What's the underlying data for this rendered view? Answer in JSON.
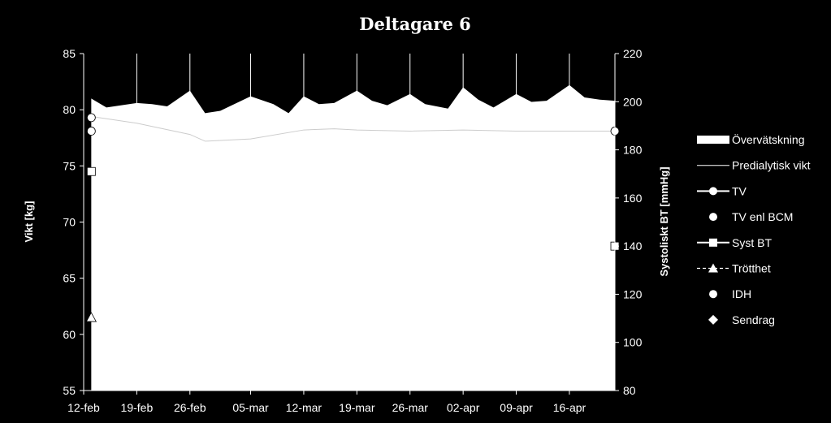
{
  "chart_data": {
    "type": "area",
    "title": "Deltagare 6",
    "x_ticks": [
      "12-feb",
      "19-feb",
      "26-feb",
      "05-mar",
      "12-mar",
      "19-mar",
      "26-mar",
      "02-apr",
      "09-apr",
      "16-apr"
    ],
    "x_range": [
      "12-feb",
      "22-apr"
    ],
    "y_left": {
      "label": "Vikt [kg]",
      "range": [
        55,
        85
      ],
      "ticks": [
        55,
        60,
        65,
        70,
        75,
        80,
        85
      ]
    },
    "y_right": {
      "label": "Systoliskt BT [mmHg]",
      "range": [
        80,
        220
      ],
      "ticks": [
        80,
        100,
        120,
        140,
        160,
        180,
        200,
        220
      ]
    },
    "legend_position": "right",
    "legend": [
      "Övervätskning",
      "Predialytisk vikt",
      "TV",
      "TV enl BCM",
      "Syst BT",
      "Trötthet",
      "IDH",
      "Sendrag"
    ],
    "colors": {
      "background": "#000000",
      "foreground": "#ffffff"
    },
    "series": [
      {
        "name": "Övervätskning",
        "axis": "left",
        "x": [
          "13-feb",
          "15-feb",
          "19-feb",
          "21-feb",
          "23-feb",
          "26-feb",
          "28-feb",
          "01-mar",
          "05-mar",
          "08-mar",
          "10-mar",
          "12-mar",
          "14-mar",
          "16-mar",
          "19-mar",
          "21-mar",
          "23-mar",
          "26-mar",
          "28-mar",
          "31-mar",
          "02-apr",
          "04-apr",
          "06-apr",
          "09-apr",
          "11-apr",
          "13-apr",
          "16-apr",
          "18-apr",
          "20-apr",
          "22-apr"
        ],
        "values": [
          81.0,
          80.2,
          80.6,
          80.5,
          80.3,
          81.7,
          79.7,
          79.9,
          81.2,
          80.5,
          79.7,
          81.2,
          80.5,
          80.6,
          81.7,
          80.8,
          80.4,
          81.4,
          80.5,
          80.1,
          82.0,
          80.9,
          80.2,
          81.4,
          80.7,
          80.8,
          82.2,
          81.1,
          80.9,
          80.8
        ]
      },
      {
        "name": "Predialytisk vikt",
        "axis": "left",
        "x": [
          "13-feb",
          "19-feb",
          "26-feb",
          "28-feb",
          "05-mar",
          "12-mar",
          "16-mar",
          "19-mar",
          "26-mar",
          "02-apr",
          "09-apr",
          "16-apr",
          "22-apr"
        ],
        "values": [
          79.4,
          78.8,
          77.8,
          77.2,
          77.4,
          78.2,
          78.3,
          78.2,
          78.1,
          78.2,
          78.1,
          78.1,
          78.1
        ]
      },
      {
        "name": "TV",
        "axis": "left",
        "x": [
          "13-feb"
        ],
        "values": [
          79.3
        ]
      },
      {
        "name": "TV enl BCM",
        "axis": "left",
        "x": [
          "13-feb",
          "22-apr"
        ],
        "values": [
          78.1,
          78.1
        ]
      },
      {
        "name": "Syst BT",
        "axis": "right",
        "x": [
          "13-feb",
          "22-apr"
        ],
        "values": [
          171,
          140
        ]
      },
      {
        "name": "Trötthet",
        "axis": "left",
        "x": [
          "13-feb"
        ],
        "values": [
          61.5
        ]
      }
    ]
  }
}
